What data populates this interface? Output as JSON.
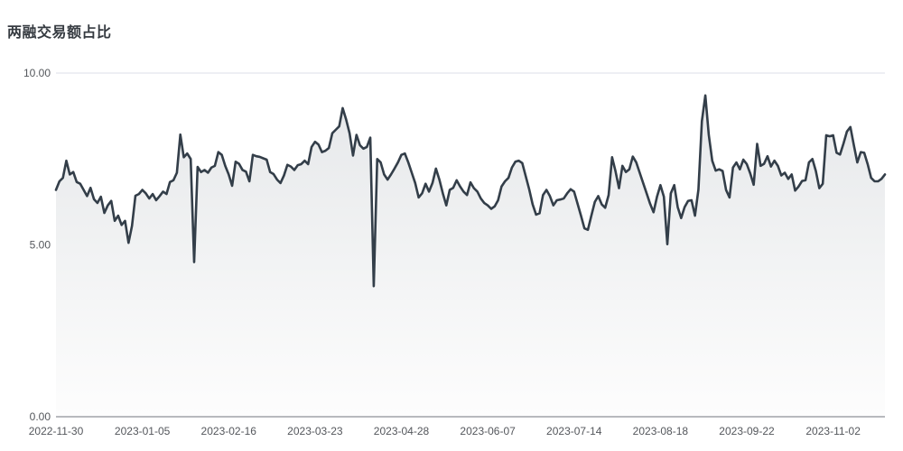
{
  "title": "两融交易额占比",
  "colors": {
    "line": "#333e49",
    "area_top": "#e6e8ea",
    "area_bottom": "#fdfdfd",
    "gridline": "#dcdfe9",
    "axis_line": "#71757e",
    "tick_text": "#54575c",
    "title_text": "#363b41",
    "background": "#ffffff"
  },
  "chart_data": {
    "type": "area",
    "title": "两融交易额占比",
    "xlabel": "",
    "ylabel": "",
    "ylim": [
      0,
      10
    ],
    "grid": "horizontal",
    "legend": "none",
    "y_ticks": [
      {
        "value": 0,
        "label": "0.00"
      },
      {
        "value": 5,
        "label": "5.00"
      },
      {
        "value": 10,
        "label": "10.00"
      }
    ],
    "x_ticks": [
      {
        "index": 0,
        "label": "2022-11-30"
      },
      {
        "index": 25,
        "label": "2023-01-05"
      },
      {
        "index": 50,
        "label": "2023-02-16"
      },
      {
        "index": 75,
        "label": "2023-03-23"
      },
      {
        "index": 100,
        "label": "2023-04-28"
      },
      {
        "index": 125,
        "label": "2023-06-07"
      },
      {
        "index": 150,
        "label": "2023-07-14"
      },
      {
        "index": 175,
        "label": "2023-08-18"
      },
      {
        "index": 200,
        "label": "2023-09-22"
      },
      {
        "index": 225,
        "label": "2023-11-02"
      }
    ],
    "values": [
      6.6,
      6.85,
      6.95,
      7.45,
      7.05,
      7.12,
      6.83,
      6.78,
      6.6,
      6.42,
      6.66,
      6.33,
      6.22,
      6.4,
      5.93,
      6.15,
      6.28,
      5.7,
      5.85,
      5.58,
      5.7,
      5.06,
      5.55,
      6.43,
      6.48,
      6.6,
      6.5,
      6.35,
      6.48,
      6.3,
      6.42,
      6.55,
      6.48,
      6.83,
      6.88,
      7.1,
      8.21,
      7.55,
      7.66,
      7.5,
      4.5,
      7.27,
      7.12,
      7.18,
      7.1,
      7.25,
      7.3,
      7.7,
      7.62,
      7.3,
      7.05,
      6.72,
      7.42,
      7.36,
      7.18,
      7.13,
      6.85,
      7.62,
      7.58,
      7.56,
      7.52,
      7.48,
      7.12,
      7.06,
      6.9,
      6.8,
      7.02,
      7.33,
      7.28,
      7.18,
      7.32,
      7.35,
      7.45,
      7.35,
      7.85,
      8.0,
      7.92,
      7.7,
      7.74,
      7.82,
      8.25,
      8.35,
      8.45,
      8.98,
      8.65,
      8.25,
      7.6,
      8.2,
      7.9,
      7.8,
      7.85,
      8.12,
      3.8,
      7.5,
      7.4,
      7.05,
      6.9,
      7.05,
      7.22,
      7.4,
      7.62,
      7.66,
      7.4,
      7.1,
      6.8,
      6.38,
      6.5,
      6.78,
      6.55,
      6.8,
      7.22,
      6.9,
      6.5,
      6.15,
      6.6,
      6.66,
      6.88,
      6.7,
      6.55,
      6.45,
      6.82,
      6.65,
      6.55,
      6.35,
      6.22,
      6.15,
      6.05,
      6.12,
      6.3,
      6.7,
      6.85,
      6.95,
      7.25,
      7.42,
      7.45,
      7.38,
      7.0,
      6.62,
      6.18,
      5.88,
      5.92,
      6.45,
      6.6,
      6.42,
      6.15,
      6.3,
      6.32,
      6.35,
      6.5,
      6.62,
      6.55,
      6.2,
      5.85,
      5.48,
      5.44,
      5.85,
      6.25,
      6.42,
      6.18,
      6.08,
      6.45,
      7.55,
      7.14,
      6.65,
      7.3,
      7.12,
      7.2,
      7.57,
      7.4,
      7.1,
      6.8,
      6.5,
      6.2,
      5.95,
      6.4,
      6.74,
      6.4,
      5.02,
      6.5,
      6.74,
      6.1,
      5.78,
      6.1,
      6.28,
      6.3,
      5.85,
      6.61,
      8.6,
      9.35,
      8.2,
      7.45,
      7.16,
      7.2,
      7.15,
      6.6,
      6.38,
      7.25,
      7.4,
      7.2,
      7.48,
      7.35,
      7.08,
      6.75,
      7.94,
      7.3,
      7.36,
      7.58,
      7.28,
      7.45,
      7.3,
      7.02,
      7.1,
      6.92,
      7.05,
      6.58,
      6.7,
      6.86,
      6.88,
      7.4,
      7.5,
      7.15,
      6.65,
      6.78,
      8.19,
      8.16,
      8.19,
      7.68,
      7.63,
      7.95,
      8.3,
      8.43,
      7.9,
      7.4,
      7.7,
      7.68,
      7.35,
      6.95,
      6.85,
      6.85,
      6.92,
      7.05
    ]
  }
}
